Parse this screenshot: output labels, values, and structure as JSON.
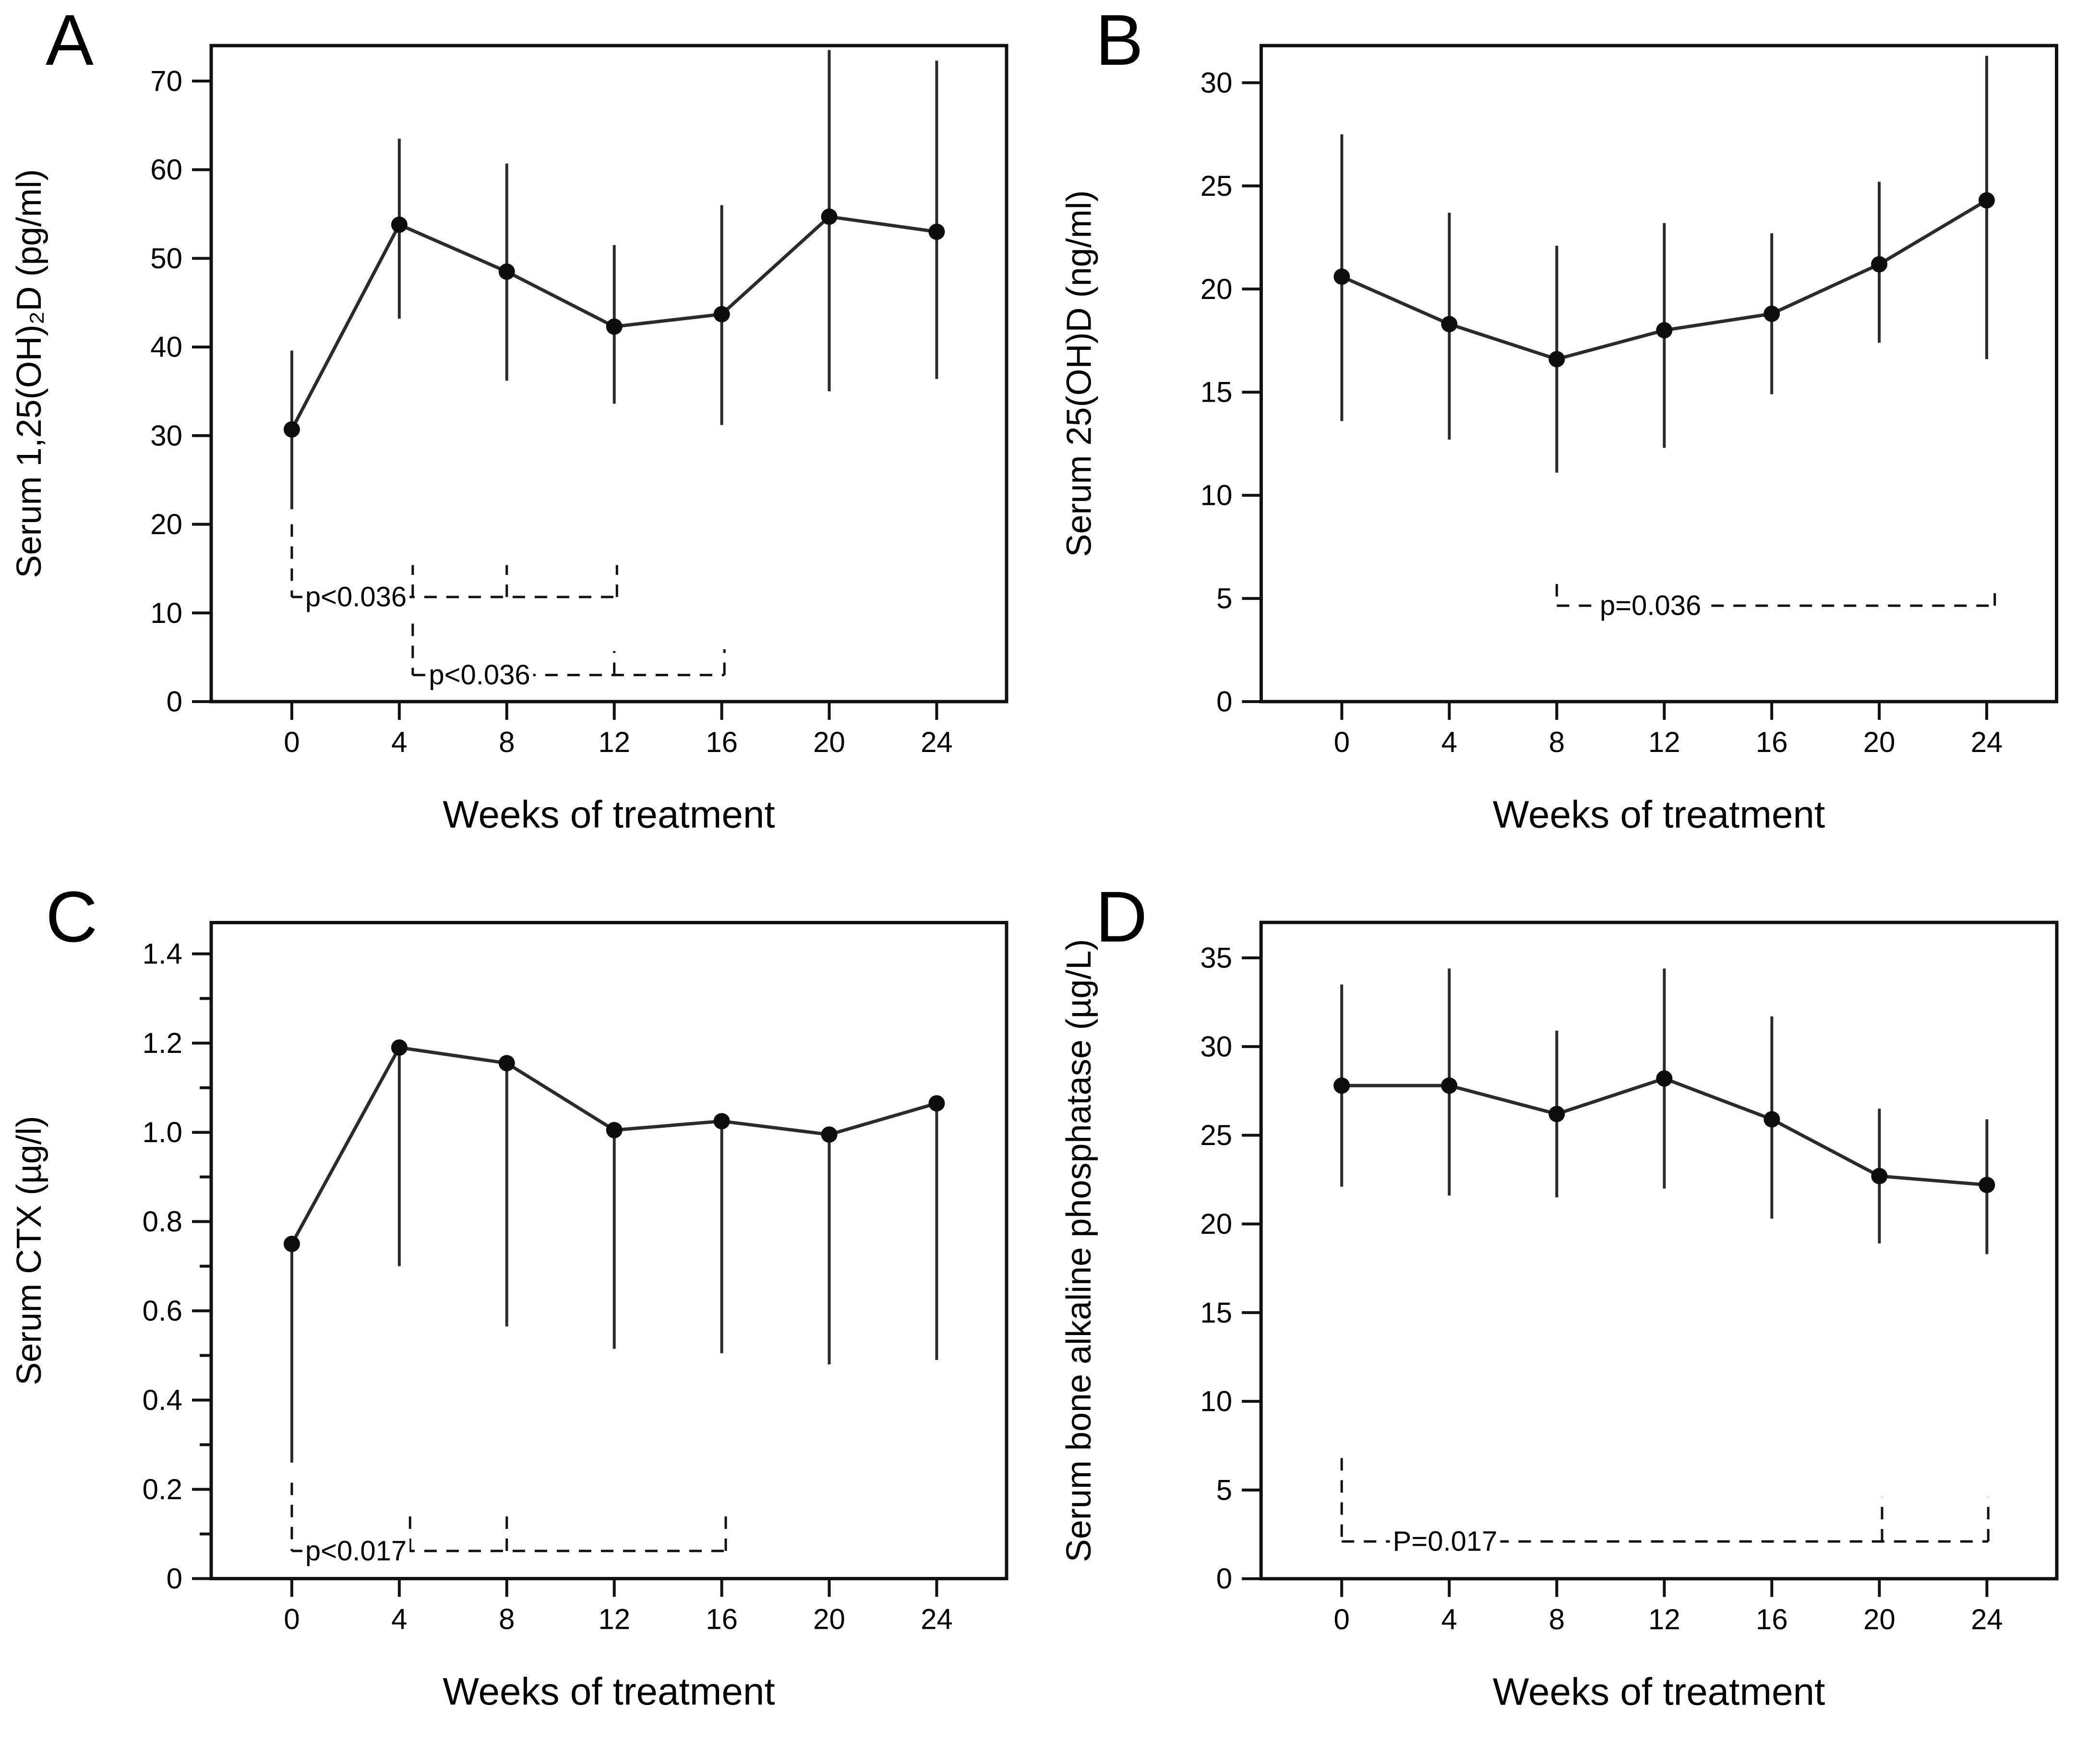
{
  "colors": {
    "axis": "#111111",
    "line": "#2b2b2b",
    "marker": "#0d0d0d",
    "background": "#ffffff",
    "text": "#000000"
  },
  "chart_data": [
    {
      "panel_label": "A",
      "type": "line",
      "ylabel": "Serum 1,25(OH)₂D (pg/ml)",
      "xlabel": "Weeks of treatment",
      "x": [
        0,
        4,
        8,
        12,
        16,
        20,
        24
      ],
      "xtick_labels": [
        "0",
        "4",
        "8",
        "12",
        "16",
        "20",
        "24"
      ],
      "xlim": [
        -3,
        26.6
      ],
      "means": [
        30.7,
        53.8,
        48.5,
        42.3,
        43.7,
        54.7,
        53.0
      ],
      "lower": [
        21.7,
        43.2,
        36.2,
        33.6,
        31.2,
        35.0,
        36.4
      ],
      "upper": [
        39.6,
        63.5,
        60.7,
        51.5,
        56.0,
        73.5,
        72.3
      ],
      "ylim": [
        0,
        74
      ],
      "yticks": [
        0,
        10,
        20,
        30,
        40,
        50,
        60,
        70
      ],
      "ytick_labels": [
        "0",
        "10",
        "20",
        "30",
        "40",
        "50",
        "60",
        "70"
      ],
      "minor_yticks": [],
      "grid": false,
      "legend": "none",
      "brackets": [
        {
          "label": "p<0.036",
          "y": 11.8,
          "x_start": 0,
          "x_end": 12.1,
          "corner_x": 0,
          "corner_top": 20.0,
          "ticks": [
            {
              "x": 4.5,
              "top": 15.4
            },
            {
              "x": 8,
              "top": 15.4
            },
            {
              "x": 12.1,
              "top": 15.4
            }
          ],
          "label_x": 0.5
        },
        {
          "label": "p<0.036",
          "y": 3.0,
          "x_start": 4.5,
          "x_end": 16.1,
          "corner_x": 4.5,
          "corner_top": 8.8,
          "ticks": [
            {
              "x": 12,
              "top": 5.7
            },
            {
              "x": 16.1,
              "top": 5.9
            }
          ],
          "label_x": 5.1
        }
      ]
    },
    {
      "panel_label": "B",
      "type": "line",
      "ylabel": "Serum 25(OH)D (ng/ml)",
      "xlabel": "Weeks of treatment",
      "x": [
        0,
        4,
        8,
        12,
        16,
        20,
        24
      ],
      "xtick_labels": [
        "0",
        "4",
        "8",
        "12",
        "16",
        "20",
        "24"
      ],
      "xlim": [
        -3,
        26.6
      ],
      "means": [
        20.6,
        18.3,
        16.6,
        18.0,
        18.8,
        21.2,
        24.3
      ],
      "lower": [
        13.6,
        12.7,
        11.1,
        12.3,
        14.9,
        17.4,
        16.6
      ],
      "upper": [
        27.5,
        23.7,
        22.1,
        23.2,
        22.7,
        25.2,
        31.3
      ],
      "ylim": [
        0,
        31.8
      ],
      "yticks": [
        0,
        5,
        10,
        15,
        20,
        25,
        30
      ],
      "ytick_labels": [
        "0",
        "5",
        "10",
        "15",
        "20",
        "25",
        "30"
      ],
      "minor_yticks": [],
      "grid": false,
      "legend": "none",
      "brackets": [
        {
          "label": "p=0.036",
          "y": 4.65,
          "x_start": 8,
          "x_end": 24.3,
          "corner_x": 8,
          "corner_top": 5.7,
          "ticks": [
            {
              "x": 24.3,
              "top": 5.7
            }
          ],
          "label_x": 9.6
        }
      ]
    },
    {
      "panel_label": "C",
      "type": "line",
      "ylabel": "Serum CTX (µg/l)",
      "xlabel": "Weeks of treatment",
      "x": [
        0,
        4,
        8,
        12,
        16,
        20,
        24
      ],
      "xtick_labels": [
        "0",
        "4",
        "8",
        "12",
        "16",
        "20",
        "24"
      ],
      "xlim": [
        -3,
        26.6
      ],
      "means": [
        0.75,
        1.19,
        1.155,
        1.005,
        1.025,
        0.995,
        1.065
      ],
      "lower": [
        0.26,
        0.7,
        0.565,
        0.515,
        0.505,
        0.48,
        0.49
      ],
      "upper": [
        0.75,
        1.19,
        1.155,
        1.005,
        1.025,
        0.995,
        1.065
      ],
      "ylim": [
        0,
        1.47
      ],
      "yticks": [
        0,
        0.2,
        0.4,
        0.6,
        0.8,
        1.0,
        1.2,
        1.4
      ],
      "ytick_labels": [
        "0",
        "0.2",
        "0.4",
        "0.6",
        "0.8",
        "1.0",
        "1.2",
        "1.4"
      ],
      "minor_yticks": [
        0.1,
        0.3,
        0.5,
        0.7,
        0.9,
        1.1,
        1.3
      ],
      "grid": false,
      "legend": "none",
      "brackets": [
        {
          "label": "p<0.017",
          "y": 0.062,
          "x_start": 0,
          "x_end": 16.15,
          "corner_x": 0,
          "corner_top": 0.215,
          "ticks": [
            {
              "x": 4.4,
              "top": 0.148
            },
            {
              "x": 8,
              "top": 0.15
            },
            {
              "x": 16.15,
              "top": 0.155
            }
          ],
          "label_x": 0.5
        }
      ]
    },
    {
      "panel_label": "D",
      "type": "line",
      "ylabel": "Serum bone alkaline phosphatase (µg/L)",
      "xlabel": "Weeks of treatment",
      "x": [
        0,
        4,
        8,
        12,
        16,
        20,
        24
      ],
      "xtick_labels": [
        "0",
        "4",
        "8",
        "12",
        "16",
        "20",
        "24"
      ],
      "xlim": [
        -3,
        26.6
      ],
      "means": [
        27.8,
        27.8,
        26.2,
        28.2,
        25.9,
        22.7,
        22.2
      ],
      "lower": [
        22.1,
        21.6,
        21.5,
        22.0,
        20.3,
        18.9,
        18.3
      ],
      "upper": [
        33.5,
        34.4,
        30.9,
        34.4,
        31.7,
        26.5,
        25.9
      ],
      "ylim": [
        0,
        37
      ],
      "yticks": [
        0,
        5,
        10,
        15,
        20,
        25,
        30,
        35
      ],
      "ytick_labels": [
        "0",
        "5",
        "10",
        "15",
        "20",
        "25",
        "30",
        "35"
      ],
      "minor_yticks": [],
      "grid": false,
      "legend": "none",
      "brackets": [
        {
          "label": "P=0.017",
          "y": 2.1,
          "x_start": 0,
          "x_end": 24.05,
          "corner_x": 0,
          "corner_top": 6.8,
          "ticks": [
            {
              "x": 20.1,
              "top": 4.6
            },
            {
              "x": 24.05,
              "top": 4.6
            }
          ],
          "label_x": 1.9
        }
      ]
    }
  ]
}
